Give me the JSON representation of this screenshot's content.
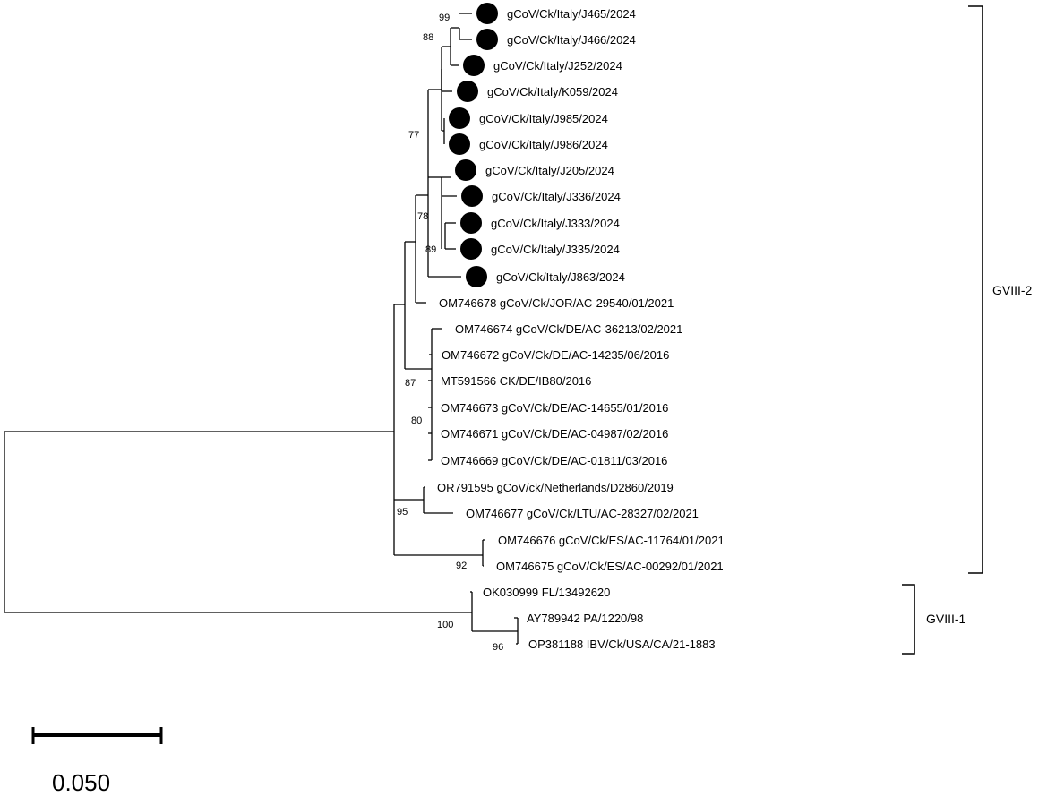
{
  "tree": {
    "tips": [
      {
        "label": "gCoV/Ck/Italy/J465/2024",
        "marked": true
      },
      {
        "label": "gCoV/Ck/Italy/J466/2024",
        "marked": true
      },
      {
        "label": "gCoV/Ck/Italy/J252/2024",
        "marked": true
      },
      {
        "label": "gCoV/Ck/Italy/K059/2024",
        "marked": true
      },
      {
        "label": "gCoV/Ck/Italy/J985/2024",
        "marked": true
      },
      {
        "label": "gCoV/Ck/Italy/J986/2024",
        "marked": true
      },
      {
        "label": "gCoV/Ck/Italy/J205/2024",
        "marked": true
      },
      {
        "label": "gCoV/Ck/Italy/J336/2024",
        "marked": true
      },
      {
        "label": "gCoV/Ck/Italy/J333/2024",
        "marked": true
      },
      {
        "label": "gCoV/Ck/Italy/J335/2024",
        "marked": true
      },
      {
        "label": "gCoV/Ck/Italy/J863/2024",
        "marked": true
      },
      {
        "label": "OM746678 gCoV/Ck/JOR/AC-29540/01/2021",
        "marked": false
      },
      {
        "label": "OM746674 gCoV/Ck/DE/AC-36213/02/2021",
        "marked": false
      },
      {
        "label": "OM746672 gCoV/Ck/DE/AC-14235/06/2016",
        "marked": false
      },
      {
        "label": "MT591566 CK/DE/IB80/2016",
        "marked": false
      },
      {
        "label": "OM746673 gCoV/Ck/DE/AC-14655/01/2016",
        "marked": false
      },
      {
        "label": "OM746671 gCoV/Ck/DE/AC-04987/02/2016",
        "marked": false
      },
      {
        "label": "OM746669 gCoV/Ck/DE/AC-01811/03/2016",
        "marked": false
      },
      {
        "label": "OR791595 gCoV/ck/Netherlands/D2860/2019",
        "marked": false
      },
      {
        "label": "OM746677 gCoV/Ck/LTU/AC-28327/02/2021",
        "marked": false
      },
      {
        "label": "OM746676 gCoV/Ck/ES/AC-11764/01/2021",
        "marked": false
      },
      {
        "label": "OM746675 gCoV/Ck/ES/AC-00292/01/2021",
        "marked": false
      },
      {
        "label": "OK030999 FL/13492620",
        "marked": false
      },
      {
        "label": "AY789942 PA/1220/98",
        "marked": false
      },
      {
        "label": "OP381188 IBV/Ck/USA/CA/21-1883",
        "marked": false
      }
    ],
    "bootstrap": [
      "99",
      "88",
      "77",
      "78",
      "89",
      "87",
      "80",
      "95",
      "92",
      "100",
      "96"
    ],
    "clades": [
      {
        "label": "GVIII-2"
      },
      {
        "label": "GVIII-1"
      }
    ],
    "scale_bar": {
      "value": "0.050"
    }
  }
}
